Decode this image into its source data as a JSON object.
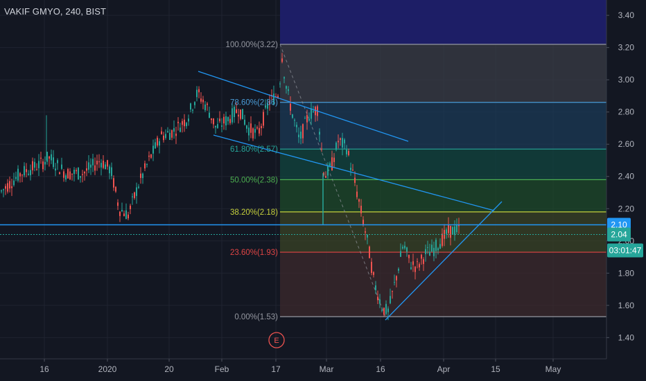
{
  "header": {
    "symbol_title": "VAKIF GMYO, 240, BIST"
  },
  "chart_data": {
    "type": "candlestick",
    "symbol": "VAKIF GMYO",
    "interval": "240",
    "exchange": "BIST",
    "ylim": [
      1.32,
      3.49
    ],
    "y_ticks": [
      "3.40",
      "3.20",
      "3.00",
      "2.80",
      "2.60",
      "2.40",
      "2.20",
      "2.00",
      "1.80",
      "1.60",
      "1.40"
    ],
    "x_ticks": [
      "16",
      "2020",
      "20",
      "Feb",
      "17",
      "Mar",
      "16",
      "Apr",
      "15",
      "May"
    ],
    "fibonacci": [
      {
        "label": "100.00%(3.22)",
        "level": 1.0,
        "price": 3.22,
        "color": "#9598a1"
      },
      {
        "label": "78.60%(2.86)",
        "level": 0.786,
        "price": 2.86,
        "color": "#4a9bd6"
      },
      {
        "label": "61.80%(2.57)",
        "level": 0.618,
        "price": 2.57,
        "color": "#26a69a"
      },
      {
        "label": "50.00%(2.38)",
        "level": 0.5,
        "price": 2.38,
        "color": "#4caf50"
      },
      {
        "label": "38.20%(2.18)",
        "level": 0.382,
        "price": 2.18,
        "color": "#c6d13c"
      },
      {
        "label": "23.60%(1.93)",
        "level": 0.236,
        "price": 1.93,
        "color": "#e04545"
      },
      {
        "label": "0.00%(1.53)",
        "level": 0.0,
        "price": 1.53,
        "color": "#9598a1"
      }
    ],
    "horizontal_lines": [
      {
        "price": 2.1,
        "label": "2.10",
        "color": "#2196f3",
        "style": "solid"
      },
      {
        "price": 2.04,
        "label": "2.04",
        "color": "#26a69a",
        "style": "dotted"
      }
    ],
    "countdown_label": "03:01:47",
    "event_marker": "E",
    "colors": {
      "up": "#26a69a",
      "down": "#ef5350",
      "background": "#131722",
      "trendline": "#2196f3"
    }
  }
}
